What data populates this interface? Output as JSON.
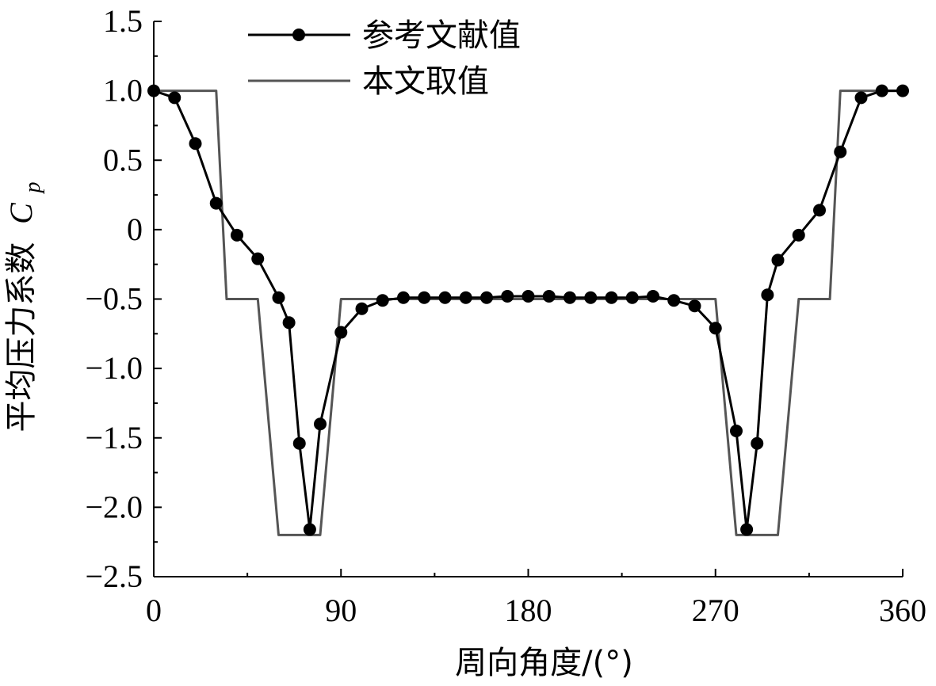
{
  "chart_data": {
    "type": "line",
    "xlabel": "周向角度/(°)",
    "ylabel_text": "平均压力系数",
    "ylabel_symbol": "C",
    "ylabel_subscript": "p",
    "xlim": [
      0,
      360
    ],
    "ylim": [
      -2.5,
      1.5
    ],
    "xticks": [
      0,
      90,
      180,
      270,
      360
    ],
    "xtick_labels": [
      "0",
      "90",
      "180",
      "270",
      "360"
    ],
    "yticks": [
      1.5,
      1.0,
      0.5,
      0,
      -0.5,
      -1.0,
      -1.5,
      -2.0,
      -2.5
    ],
    "ytick_labels": [
      "1.5",
      "1.0",
      "0.5",
      "0",
      "−0.5",
      "−1.0",
      "−1.5",
      "−2.0",
      "−2.5"
    ],
    "grid": false,
    "legend_position": "top-center",
    "series": [
      {
        "name": "参考文献值",
        "style": "line-with-markers",
        "color": "#000000",
        "x": [
          0,
          10,
          20,
          30,
          40,
          50,
          60,
          65,
          70,
          75,
          80,
          90,
          100,
          110,
          120,
          130,
          140,
          150,
          160,
          170,
          180,
          190,
          200,
          210,
          220,
          230,
          240,
          250,
          260,
          270,
          280,
          285,
          290,
          295,
          300,
          310,
          320,
          330,
          340,
          350,
          360
        ],
        "y": [
          1.0,
          0.95,
          0.62,
          0.19,
          -0.04,
          -0.21,
          -0.49,
          -0.67,
          -1.54,
          -2.16,
          -1.4,
          -0.74,
          -0.57,
          -0.51,
          -0.49,
          -0.49,
          -0.49,
          -0.49,
          -0.49,
          -0.48,
          -0.48,
          -0.48,
          -0.49,
          -0.49,
          -0.49,
          -0.49,
          -0.48,
          -0.51,
          -0.55,
          -0.71,
          -1.45,
          -2.16,
          -1.54,
          -0.47,
          -0.22,
          -0.04,
          0.14,
          0.56,
          0.95,
          1.0,
          1.0
        ]
      },
      {
        "name": "本文取值",
        "style": "line",
        "color": "#555555",
        "x": [
          0,
          30,
          35,
          50,
          60,
          80,
          90,
          270,
          280,
          300,
          310,
          325,
          330,
          360
        ],
        "y": [
          1.0,
          1.0,
          -0.5,
          -0.5,
          -2.2,
          -2.2,
          -0.5,
          -0.5,
          -2.2,
          -2.2,
          -0.5,
          -0.5,
          1.0,
          1.0
        ]
      }
    ]
  }
}
